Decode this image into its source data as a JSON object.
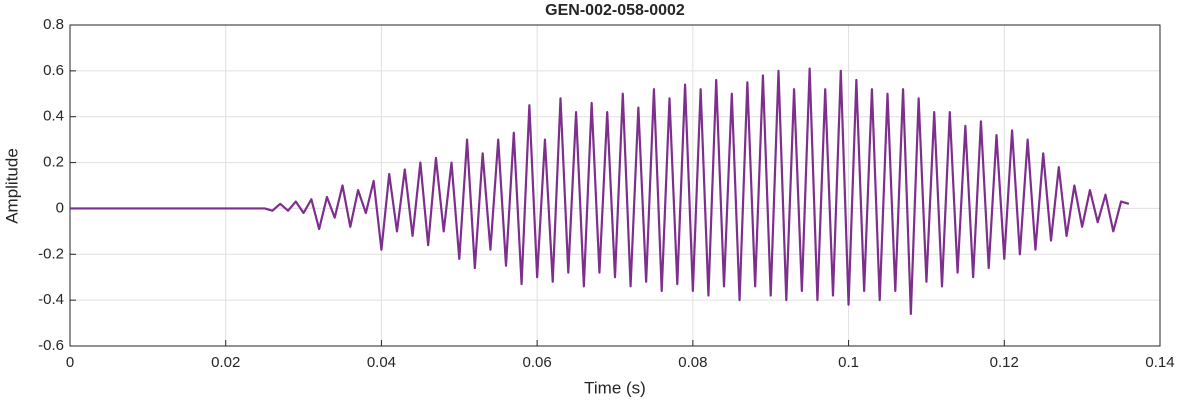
{
  "chart_data": {
    "type": "line",
    "title": "GEN-002-058-0002",
    "xlabel": "Time (s)",
    "ylabel": "Amplitude",
    "x": [
      0,
      0.01,
      0.02,
      0.025,
      0.026,
      0.027,
      0.028,
      0.029,
      0.03,
      0.031,
      0.032,
      0.033,
      0.034,
      0.035,
      0.036,
      0.037,
      0.038,
      0.039,
      0.04,
      0.041,
      0.042,
      0.043,
      0.044,
      0.045,
      0.046,
      0.047,
      0.048,
      0.049,
      0.05,
      0.051,
      0.052,
      0.053,
      0.054,
      0.055,
      0.056,
      0.057,
      0.058,
      0.059,
      0.06,
      0.061,
      0.062,
      0.063,
      0.064,
      0.065,
      0.066,
      0.067,
      0.068,
      0.069,
      0.07,
      0.071,
      0.072,
      0.073,
      0.074,
      0.075,
      0.076,
      0.077,
      0.078,
      0.079,
      0.08,
      0.081,
      0.082,
      0.083,
      0.084,
      0.085,
      0.086,
      0.087,
      0.088,
      0.089,
      0.09,
      0.091,
      0.092,
      0.093,
      0.094,
      0.095,
      0.096,
      0.097,
      0.098,
      0.099,
      0.1,
      0.101,
      0.102,
      0.103,
      0.104,
      0.105,
      0.106,
      0.107,
      0.108,
      0.109,
      0.11,
      0.111,
      0.112,
      0.113,
      0.114,
      0.115,
      0.116,
      0.117,
      0.118,
      0.119,
      0.12,
      0.121,
      0.122,
      0.123,
      0.124,
      0.125,
      0.126,
      0.127,
      0.128,
      0.129,
      0.13,
      0.131,
      0.132,
      0.133,
      0.134,
      0.135,
      0.136
    ],
    "series": [
      {
        "name": "Amplitude",
        "color": "#7e2f8e",
        "values": [
          0,
          0,
          0,
          0,
          -0.01,
          0.02,
          -0.01,
          0.03,
          -0.02,
          0.04,
          -0.09,
          0.05,
          -0.04,
          0.1,
          -0.08,
          0.08,
          -0.02,
          0.12,
          -0.18,
          0.15,
          -0.1,
          0.17,
          -0.12,
          0.2,
          -0.16,
          0.22,
          -0.1,
          0.2,
          -0.22,
          0.3,
          -0.26,
          0.24,
          -0.18,
          0.3,
          -0.25,
          0.33,
          -0.33,
          0.45,
          -0.3,
          0.3,
          -0.32,
          0.48,
          -0.28,
          0.42,
          -0.34,
          0.46,
          -0.28,
          0.42,
          -0.3,
          0.5,
          -0.34,
          0.44,
          -0.32,
          0.52,
          -0.36,
          0.48,
          -0.33,
          0.54,
          -0.36,
          0.52,
          -0.38,
          0.56,
          -0.34,
          0.5,
          -0.4,
          0.55,
          -0.34,
          0.58,
          -0.38,
          0.6,
          -0.4,
          0.52,
          -0.36,
          0.61,
          -0.4,
          0.52,
          -0.38,
          0.6,
          -0.42,
          0.56,
          -0.36,
          0.52,
          -0.4,
          0.5,
          -0.36,
          0.52,
          -0.46,
          0.48,
          -0.32,
          0.42,
          -0.34,
          0.42,
          -0.28,
          0.36,
          -0.3,
          0.38,
          -0.26,
          0.32,
          -0.22,
          0.34,
          -0.2,
          0.3,
          -0.18,
          0.24,
          -0.14,
          0.18,
          -0.12,
          0.1,
          -0.08,
          0.08,
          -0.06,
          0.06,
          -0.1,
          0.03,
          0.02
        ]
      }
    ],
    "xlim": [
      0,
      0.14
    ],
    "xticks": [
      0,
      0.02,
      0.04,
      0.06,
      0.08,
      0.1,
      0.12,
      0.14
    ],
    "ylim": [
      -0.6,
      0.8
    ],
    "yticks": [
      -0.6,
      -0.4,
      -0.2,
      0,
      0.2,
      0.4,
      0.6,
      0.8
    ],
    "grid": true
  }
}
